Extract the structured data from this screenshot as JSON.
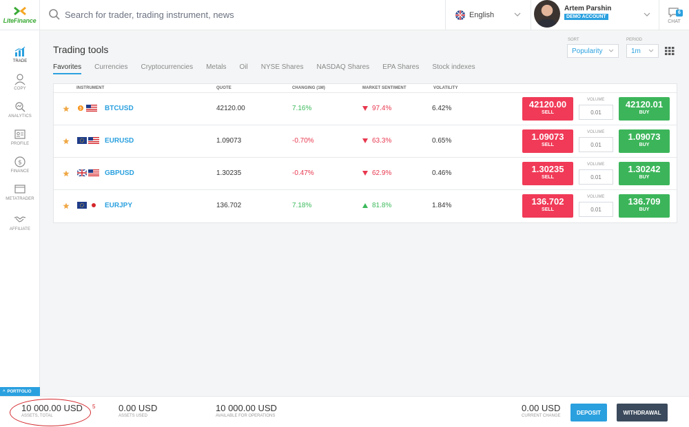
{
  "brand": {
    "logo_text": "LiteFinance",
    "accent": "#2aa0df",
    "green": "#3cb55a",
    "red": "#f03a57"
  },
  "header": {
    "search_placeholder": "Search for trader, trading instrument, news",
    "language": "English",
    "user_name": "Artem Parshin",
    "account_badge": "DEMO ACCOUNT",
    "chat_label": "CHAT",
    "chat_count": "6"
  },
  "sidebar": {
    "items": [
      {
        "label": "TRADE",
        "icon": "chart-icon"
      },
      {
        "label": "COPY",
        "icon": "person-icon"
      },
      {
        "label": "ANALYTICS",
        "icon": "analytics-icon"
      },
      {
        "label": "PROFILE",
        "icon": "id-card-icon"
      },
      {
        "label": "FINANCE",
        "icon": "dollar-icon"
      },
      {
        "label": "METATRADER",
        "icon": "monitor-icon"
      },
      {
        "label": "AFFILIATE",
        "icon": "handshake-icon"
      }
    ],
    "portfolio_label": "PORTFOLIO"
  },
  "main": {
    "title": "Trading tools",
    "sort": {
      "label": "SORT",
      "value": "Popularity"
    },
    "period": {
      "label": "PERIOD",
      "value": "1m"
    },
    "tabs": [
      "Favorites",
      "Currencies",
      "Cryptocurrencies",
      "Metals",
      "Oil",
      "NYSE Shares",
      "NASDAQ Shares",
      "EPA Shares",
      "Stock indexes"
    ],
    "columns": {
      "instrument": "INSTRUMENT",
      "quote": "QUOTE",
      "changing": "CHANGING (1M)",
      "sentiment": "MARKET SENTIMENT",
      "volatility": "VOLATILITY"
    },
    "volume_label": "VOLUME",
    "sell_label": "SELL",
    "buy_label": "BUY",
    "rows": [
      {
        "symbol": "BTCUSD",
        "quote": "42120.00",
        "change": "7.16%",
        "sentiment": "97.4%",
        "volatility": "6.42%",
        "sell": "42120.00",
        "buy": "42120.01",
        "volume": "0.01"
      },
      {
        "symbol": "EURUSD",
        "quote": "1.09073",
        "change": "-0.70%",
        "sentiment": "63.3%",
        "volatility": "0.65%",
        "sell": "1.09073",
        "buy": "1.09073",
        "volume": "0.01"
      },
      {
        "symbol": "GBPUSD",
        "quote": "1.30235",
        "change": "-0.47%",
        "sentiment": "62.9%",
        "volatility": "0.46%",
        "sell": "1.30235",
        "buy": "1.30242",
        "volume": "0.01"
      },
      {
        "symbol": "EURJPY",
        "quote": "136.702",
        "change": "7.18%",
        "sentiment": "81.8%",
        "volatility": "1.84%",
        "sell": "136.702",
        "buy": "136.709",
        "volume": "0.01"
      }
    ]
  },
  "footer": {
    "assets_total": {
      "value": "10 000.00 USD",
      "label": "ASSETS, TOTAL"
    },
    "marker": "5",
    "assets_used": {
      "value": "0.00 USD",
      "label": "ASSETS USED"
    },
    "available": {
      "value": "10 000.00 USD",
      "label": "AVAILABLE FOR OPERATIONS"
    },
    "current_change": {
      "value": "0.00 USD",
      "label": "CURRENT CHANGE"
    },
    "deposit_label": "DEPOSIT",
    "withdrawal_label": "WITHDRAWAL"
  }
}
